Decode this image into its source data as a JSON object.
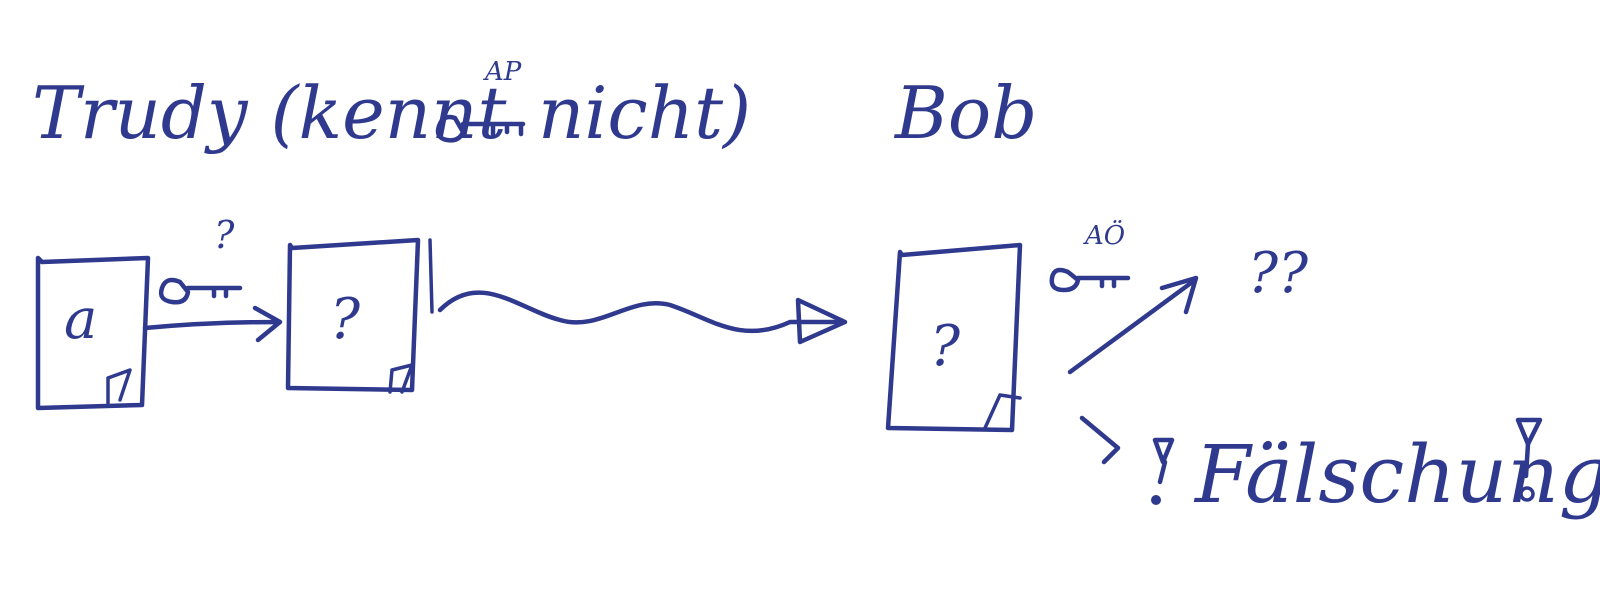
{
  "labels": {
    "trudy_prefix": "Trudy (kennt",
    "trudy_suffix": "nicht)",
    "key_private_sup": "AP",
    "bob": "Bob",
    "doc_plain": "a",
    "key_unknown_sup": "?",
    "doc_unknown_1": "?",
    "doc_unknown_2": "?",
    "key_public_sup": "AÖ",
    "result_unknown": "??",
    "result_forgery": "Fälschung"
  },
  "colors": {
    "ink": "#2f3a8f",
    "paper": "#ffffff"
  },
  "icons": [
    "key-icon",
    "document-icon",
    "arrow-icon",
    "wavy-arrow-icon",
    "forgery-icon"
  ]
}
